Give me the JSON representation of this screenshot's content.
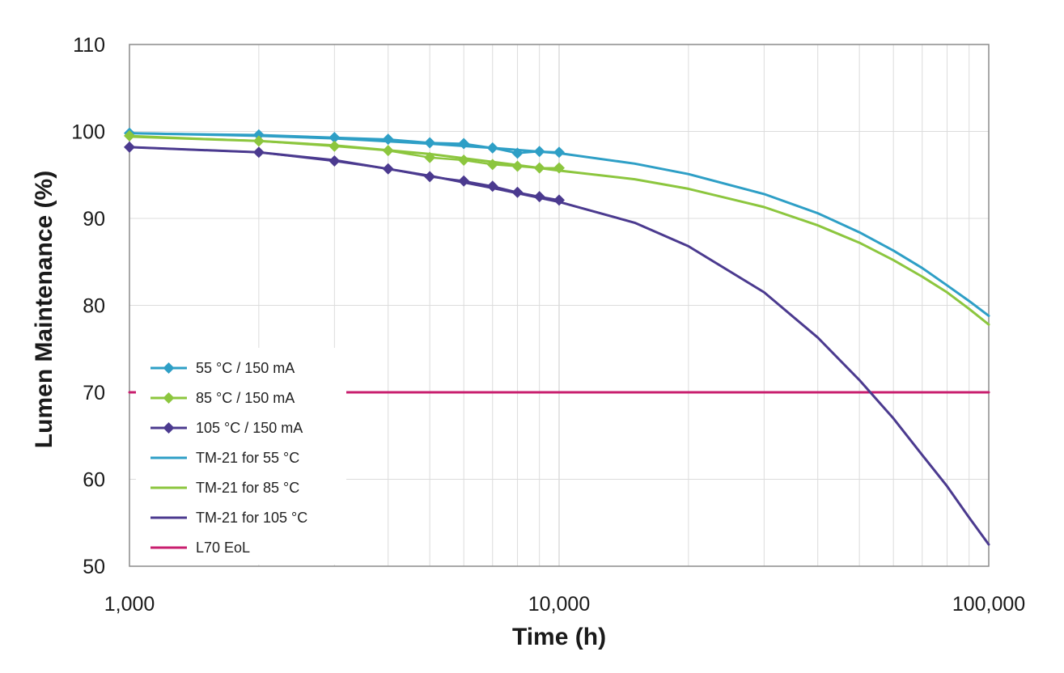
{
  "chart_data": {
    "type": "line",
    "title": "",
    "xlabel": "Time (h)",
    "ylabel": "Lumen Maintenance (%)",
    "xscale": "log",
    "xlim": [
      1000,
      100000
    ],
    "ylim": [
      50,
      110
    ],
    "x_ticks": [
      1000,
      10000,
      100000
    ],
    "x_tick_labels": [
      "1,000",
      "10,000",
      "100,000"
    ],
    "y_ticks": [
      50,
      60,
      70,
      80,
      90,
      100,
      110
    ],
    "y_tick_labels": [
      "50",
      "60",
      "70",
      "80",
      "90",
      "100",
      "110"
    ],
    "grid": true,
    "legend_position": "left",
    "series": [
      {
        "name": "55 °C / 150 mA",
        "color": "#2e9fc6",
        "marker": "diamond",
        "line": true,
        "x": [
          1000,
          2000,
          3000,
          4000,
          5000,
          6000,
          7000,
          8000,
          9000,
          10000
        ],
        "y": [
          99.8,
          99.6,
          99.3,
          99.1,
          98.7,
          98.6,
          98.1,
          97.5,
          97.7,
          97.6
        ]
      },
      {
        "name": "85 °C / 150 mA",
        "color": "#8cc63e",
        "marker": "diamond",
        "line": true,
        "x": [
          1000,
          2000,
          3000,
          4000,
          5000,
          6000,
          7000,
          8000,
          9000,
          10000
        ],
        "y": [
          99.5,
          98.9,
          98.3,
          97.8,
          97.0,
          96.7,
          96.2,
          96.0,
          95.8,
          95.8
        ]
      },
      {
        "name": "105 °C / 150 mA",
        "color": "#4b3a8f",
        "marker": "diamond",
        "line": true,
        "x": [
          1000,
          2000,
          3000,
          4000,
          5000,
          6000,
          7000,
          8000,
          9000,
          10000
        ],
        "y": [
          98.2,
          97.6,
          96.6,
          95.7,
          94.8,
          94.3,
          93.7,
          93.0,
          92.5,
          92.1
        ]
      },
      {
        "name": "TM-21 for 55 °C",
        "color": "#2e9fc6",
        "marker": "none",
        "line": true,
        "x": [
          1000,
          2000,
          3000,
          5000,
          7000,
          10000,
          15000,
          20000,
          30000,
          40000,
          50000,
          60000,
          70000,
          80000,
          90000,
          100000
        ],
        "y": [
          99.8,
          99.5,
          99.2,
          98.6,
          98.1,
          97.5,
          96.3,
          95.1,
          92.8,
          90.6,
          88.4,
          86.3,
          84.3,
          82.3,
          80.5,
          78.8
        ]
      },
      {
        "name": "TM-21 for 85 °C",
        "color": "#8cc63e",
        "marker": "none",
        "line": true,
        "x": [
          1000,
          2000,
          3000,
          5000,
          7000,
          10000,
          15000,
          20000,
          30000,
          40000,
          50000,
          60000,
          70000,
          80000,
          90000,
          100000
        ],
        "y": [
          99.4,
          98.9,
          98.4,
          97.4,
          96.5,
          95.5,
          94.5,
          93.4,
          91.3,
          89.2,
          87.2,
          85.2,
          83.3,
          81.5,
          79.6,
          77.8
        ]
      },
      {
        "name": "TM-21 for 105 °C",
        "color": "#4b3a8f",
        "marker": "none",
        "line": true,
        "x": [
          1000,
          2000,
          3000,
          5000,
          7000,
          10000,
          15000,
          20000,
          30000,
          40000,
          50000,
          60000,
          70000,
          80000,
          90000,
          100000
        ],
        "y": [
          98.2,
          97.6,
          96.7,
          94.9,
          93.5,
          91.9,
          89.5,
          86.8,
          81.5,
          76.3,
          71.4,
          67.0,
          62.8,
          59.2,
          55.6,
          52.5
        ]
      },
      {
        "name": "L70 EoL",
        "color": "#c81e6e",
        "marker": "none",
        "line": true,
        "x": [
          1000,
          100000
        ],
        "y": [
          70,
          70
        ]
      }
    ]
  }
}
